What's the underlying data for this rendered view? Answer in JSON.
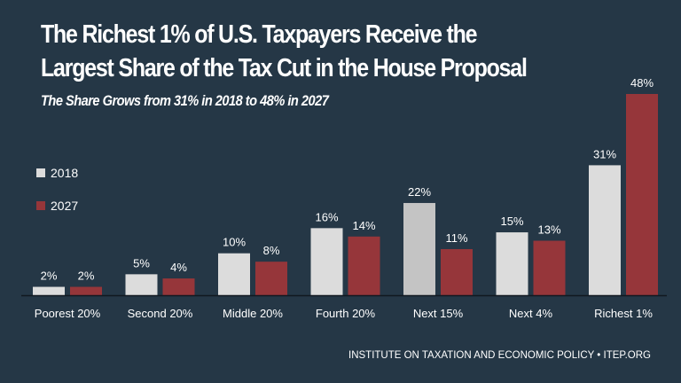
{
  "chart_data": {
    "type": "bar",
    "title": "The Richest 1% of U.S. Taxpayers Receive the Largest Share of the Tax Cut in the House Proposal",
    "title_lines": [
      "The Richest 1% of U.S. Taxpayers Receive the",
      "Largest Share of the Tax Cut in the House Proposal"
    ],
    "subtitle": "The Share Grows from 31% in 2018 to 48% in 2027",
    "xlabel": "",
    "ylabel": "",
    "ylim": [
      0,
      48
    ],
    "grid": false,
    "legend_position": "left",
    "categories": [
      "Poorest 20%",
      "Second 20%",
      "Middle 20%",
      "Fourth 20%",
      "Next 15%",
      "Next 4%",
      "Richest 1%"
    ],
    "series": [
      {
        "name": "2018",
        "color": "#dcdcdc",
        "values": [
          2,
          5,
          10,
          16,
          22,
          15,
          31
        ],
        "labels": [
          "2%",
          "5%",
          "10%",
          "16%",
          "22%",
          "15%",
          "31%"
        ]
      },
      {
        "name": "2027",
        "color": "#96363a",
        "values": [
          2,
          4,
          8,
          14,
          11,
          13,
          48
        ],
        "labels": [
          "2%",
          "4%",
          "8%",
          "14%",
          "11%",
          "13%",
          "48%"
        ]
      }
    ]
  },
  "colors": {
    "background": "#253746",
    "text": "#ffffff",
    "axis": "#111820"
  },
  "footer": "INSTITUTE ON TAXATION AND ECONOMIC POLICY • ITEP.ORG"
}
